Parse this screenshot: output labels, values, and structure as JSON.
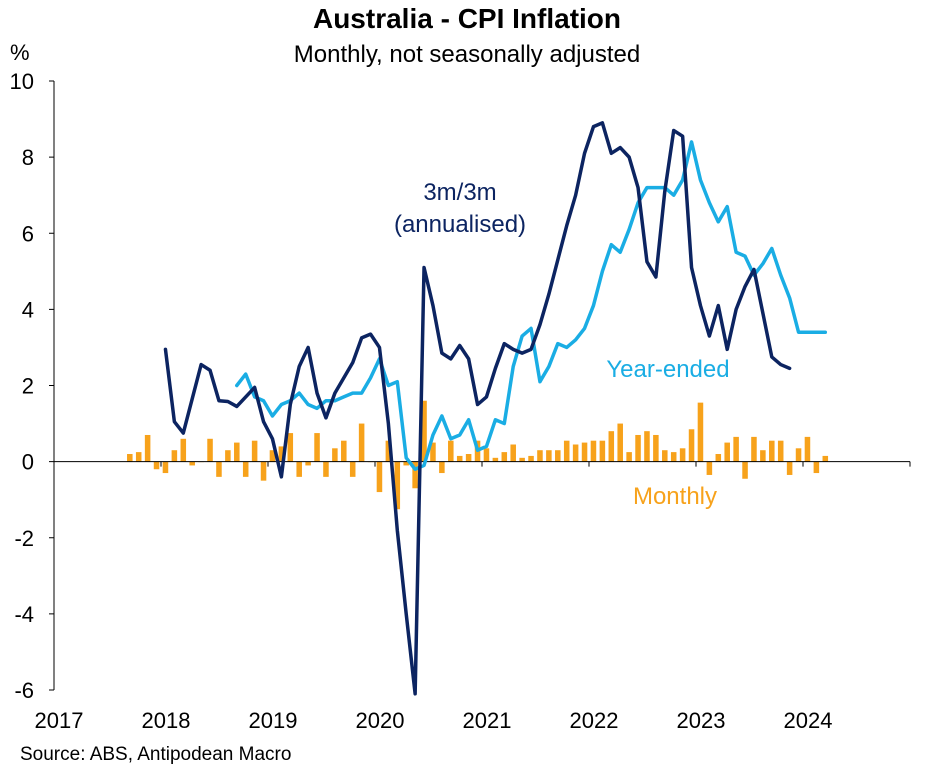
{
  "chart_data": {
    "type": "line",
    "title": "Australia - CPI Inflation",
    "subtitle": "Monthly, not seasonally adjusted",
    "ylabel": "%",
    "source": "Source: ABS, Antipodean Macro",
    "ylim": [
      -6,
      10
    ],
    "yticks": [
      -6,
      -4,
      -2,
      0,
      2,
      4,
      6,
      8,
      10
    ],
    "xlim": [
      2017,
      2025
    ],
    "xticks": [
      2017,
      2018,
      2019,
      2020,
      2021,
      2022,
      2023,
      2024
    ],
    "grid": false,
    "colors": {
      "monthly": "#F7A21B",
      "year_ended": "#1AADE4",
      "three_month": "#0C2461"
    },
    "annotations": {
      "three_month_line1": "3m/3m",
      "three_month_line2": "(annualised)",
      "year_ended": "Year-ended",
      "monthly": "Monthly"
    },
    "series": [
      {
        "name": "Monthly",
        "type": "bar",
        "start": [
          2017,
          9
        ],
        "values": [
          0.2,
          0.25,
          0.7,
          -0.2,
          -0.3,
          0.3,
          0.6,
          -0.1,
          0.0,
          0.6,
          -0.4,
          0.3,
          0.5,
          -0.4,
          0.55,
          -0.5,
          0.3,
          0.4,
          0.75,
          -0.4,
          -0.1,
          0.75,
          -0.4,
          0.35,
          0.55,
          -0.4,
          1.0,
          0.0,
          -0.8,
          0.55,
          -1.25,
          -0.1,
          -0.7,
          1.6,
          0.5,
          -0.3,
          0.55,
          0.15,
          0.2,
          0.55,
          0.35,
          0.1,
          0.25,
          0.45,
          0.1,
          0.15,
          0.3,
          0.3,
          0.3,
          0.55,
          0.45,
          0.5,
          0.55,
          0.55,
          0.8,
          1.0,
          0.25,
          0.7,
          0.8,
          0.7,
          0.3,
          0.25,
          0.35,
          0.85,
          1.55,
          -0.35,
          0.2,
          0.5,
          0.65,
          -0.45,
          0.65,
          0.3,
          0.55,
          0.55,
          -0.35,
          0.35,
          0.65,
          -0.3,
          0.15
        ]
      },
      {
        "name": "Year-ended",
        "type": "line",
        "start": [
          2018,
          9
        ],
        "values": [
          2.0,
          2.3,
          1.7,
          1.6,
          1.2,
          1.5,
          1.6,
          1.8,
          1.5,
          1.4,
          1.6,
          1.6,
          1.7,
          1.8,
          1.8,
          2.2,
          2.7,
          2.0,
          2.1,
          0.1,
          -0.2,
          -0.1,
          0.7,
          1.2,
          0.6,
          0.7,
          1.1,
          0.3,
          0.4,
          1.1,
          1.0,
          2.5,
          3.3,
          3.5,
          2.1,
          2.5,
          3.1,
          3.0,
          3.2,
          3.5,
          4.1,
          5.0,
          5.7,
          5.5,
          6.1,
          6.8,
          7.2,
          7.2,
          7.2,
          7.0,
          7.4,
          8.4,
          7.4,
          6.8,
          6.3,
          6.7,
          5.5,
          5.4,
          4.9,
          5.2,
          5.6,
          4.9,
          4.3,
          3.4,
          3.4,
          3.4,
          3.4
        ]
      },
      {
        "name": "3m/3m (annualised)",
        "type": "line",
        "start": [
          2018,
          1
        ],
        "values": [
          2.95,
          1.05,
          0.75,
          1.65,
          2.55,
          2.4,
          1.6,
          1.58,
          1.45,
          1.7,
          1.95,
          1.05,
          0.6,
          -0.4,
          1.5,
          2.5,
          3.0,
          1.8,
          1.15,
          1.8,
          2.2,
          2.6,
          3.25,
          3.35,
          3.0,
          1.0,
          -1.8,
          -4.0,
          -6.1,
          5.1,
          4.1,
          2.85,
          2.7,
          3.05,
          2.7,
          1.5,
          1.7,
          2.45,
          3.1,
          2.95,
          2.85,
          2.95,
          3.6,
          4.4,
          5.3,
          6.2,
          7.0,
          8.1,
          8.8,
          8.9,
          8.1,
          8.25,
          8.0,
          7.2,
          5.25,
          4.85,
          7.1,
          8.7,
          8.55,
          5.1,
          4.1,
          3.3,
          4.1,
          2.95,
          4.0,
          4.6,
          5.05,
          3.9,
          2.75,
          2.55,
          2.45
        ]
      }
    ]
  }
}
